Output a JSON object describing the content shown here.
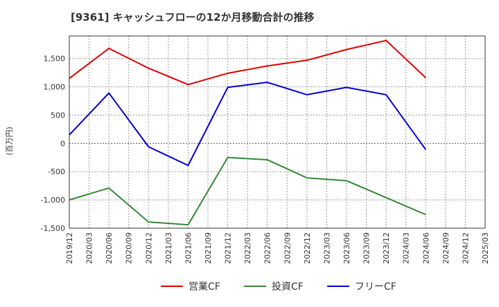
{
  "chart_data": {
    "type": "line",
    "title": "[9361]  キャッシュフローの12か月移動合計の推移",
    "xlabel": "",
    "ylabel": "(百万円)",
    "ylim": [
      -1500,
      1900
    ],
    "yticks": [
      -1500,
      -1000,
      -500,
      0,
      500,
      1000,
      1500
    ],
    "ytick_labels": [
      "-1,500",
      "-1,000",
      "-500",
      "0",
      "500",
      "1,000",
      "1,500"
    ],
    "x_categories": [
      "2019/12",
      "2020/03",
      "2020/06",
      "2020/09",
      "2020/12",
      "2021/03",
      "2021/06",
      "2021/09",
      "2021/12",
      "2022/03",
      "2022/06",
      "2022/09",
      "2022/12",
      "2023/03",
      "2023/06",
      "2023/09",
      "2023/12",
      "2024/03",
      "2024/06",
      "2024/09",
      "2024/12",
      "2025/03"
    ],
    "grid": true,
    "legend_position": "bottom",
    "series": [
      {
        "name": "営業CF",
        "color": "#dd0000",
        "points": [
          {
            "x": "2019/12",
            "y": 1150
          },
          {
            "x": "2020/06",
            "y": 1680
          },
          {
            "x": "2020/12",
            "y": 1330
          },
          {
            "x": "2021/06",
            "y": 1040
          },
          {
            "x": "2021/12",
            "y": 1240
          },
          {
            "x": "2022/06",
            "y": 1370
          },
          {
            "x": "2022/12",
            "y": 1470
          },
          {
            "x": "2023/06",
            "y": 1660
          },
          {
            "x": "2023/12",
            "y": 1820
          },
          {
            "x": "2024/06",
            "y": 1160
          }
        ]
      },
      {
        "name": "投資CF",
        "color": "#338833",
        "points": [
          {
            "x": "2019/12",
            "y": -1000
          },
          {
            "x": "2020/06",
            "y": -790
          },
          {
            "x": "2020/12",
            "y": -1390
          },
          {
            "x": "2021/06",
            "y": -1440
          },
          {
            "x": "2021/12",
            "y": -250
          },
          {
            "x": "2022/06",
            "y": -290
          },
          {
            "x": "2022/12",
            "y": -610
          },
          {
            "x": "2023/06",
            "y": -660
          },
          {
            "x": "2023/12",
            "y": -960
          },
          {
            "x": "2024/06",
            "y": -1260
          }
        ]
      },
      {
        "name": "フリーCF",
        "color": "#0000cc",
        "points": [
          {
            "x": "2019/12",
            "y": 150
          },
          {
            "x": "2020/06",
            "y": 890
          },
          {
            "x": "2020/12",
            "y": -60
          },
          {
            "x": "2021/06",
            "y": -390
          },
          {
            "x": "2021/12",
            "y": 990
          },
          {
            "x": "2022/06",
            "y": 1080
          },
          {
            "x": "2022/12",
            "y": 860
          },
          {
            "x": "2023/06",
            "y": 990
          },
          {
            "x": "2023/12",
            "y": 860
          },
          {
            "x": "2024/06",
            "y": -110
          }
        ]
      }
    ]
  },
  "colors": {
    "background": "#ffffff",
    "plot_border": "#333333",
    "grid": "#999999",
    "zero_line": "#555555"
  }
}
